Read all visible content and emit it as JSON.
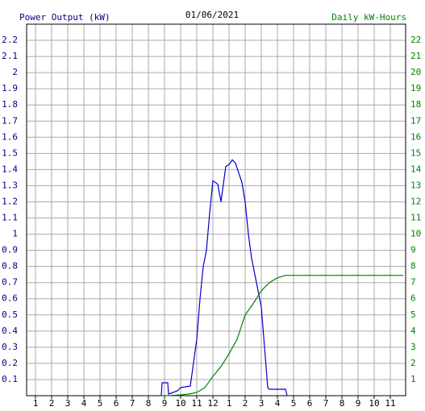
{
  "chart_data": {
    "type": "line",
    "title": "01/06/2021",
    "y_label": "Power Output (kW)",
    "y2_label": "Daily kW-Hours",
    "xlim": [
      0.45,
      23.95
    ],
    "xticks": [
      {
        "value": 1,
        "label": "1"
      },
      {
        "value": 2,
        "label": "2"
      },
      {
        "value": 3,
        "label": "3"
      },
      {
        "value": 4,
        "label": "4"
      },
      {
        "value": 5,
        "label": "5"
      },
      {
        "value": 6,
        "label": "6"
      },
      {
        "value": 7,
        "label": "7"
      },
      {
        "value": 8,
        "label": "8"
      },
      {
        "value": 9,
        "label": "9"
      },
      {
        "value": 10,
        "label": "10"
      },
      {
        "value": 11,
        "label": "11"
      },
      {
        "value": 12,
        "label": "12"
      },
      {
        "value": 13,
        "label": "1"
      },
      {
        "value": 14,
        "label": "2"
      },
      {
        "value": 15,
        "label": "3"
      },
      {
        "value": 16,
        "label": "4"
      },
      {
        "value": 17,
        "label": "5"
      },
      {
        "value": 18,
        "label": "6"
      },
      {
        "value": 19,
        "label": "7"
      },
      {
        "value": 20,
        "label": "8"
      },
      {
        "value": 21,
        "label": "9"
      },
      {
        "value": 22,
        "label": "10"
      },
      {
        "value": 23,
        "label": "11"
      }
    ],
    "ylim": [
      0,
      2.3
    ],
    "yticks": [
      0.1,
      0.2,
      0.3,
      0.4,
      0.5,
      0.6,
      0.7,
      0.8,
      0.9,
      1.0,
      1.1,
      1.2,
      1.3,
      1.4,
      1.5,
      1.6,
      1.7,
      1.8,
      1.9,
      2.0,
      2.1,
      2.2
    ],
    "y2lim": [
      0,
      23
    ],
    "y2ticks": [
      1,
      2,
      3,
      4,
      5,
      6,
      7,
      8,
      9,
      10,
      11,
      12,
      13,
      14,
      15,
      16,
      17,
      18,
      19,
      20,
      21,
      22
    ],
    "grid": true,
    "y_color": "#000080",
    "y2_color": "#008000",
    "series": [
      {
        "color": "#0000cc",
        "x": [
          8.8,
          8.85,
          9.2,
          9.25,
          9.8,
          10.0,
          10.6,
          11.0,
          11.2,
          11.4,
          11.6,
          11.8,
          12.0,
          12.3,
          12.5,
          12.8,
          13.0,
          13.2,
          13.4,
          13.6,
          13.8,
          14.0,
          14.2,
          14.4,
          14.6,
          14.8,
          15.0,
          15.2,
          15.4,
          15.5,
          16.0,
          16.5,
          16.6
        ],
        "values": [
          0.0,
          0.08,
          0.08,
          0.01,
          0.03,
          0.05,
          0.06,
          0.35,
          0.6,
          0.8,
          0.9,
          1.13,
          1.33,
          1.31,
          1.2,
          1.42,
          1.43,
          1.46,
          1.44,
          1.38,
          1.32,
          1.2,
          1.0,
          0.85,
          0.75,
          0.65,
          0.55,
          0.3,
          0.05,
          0.04,
          0.04,
          0.04,
          0.0
        ]
      },
      {
        "color": "#008000",
        "axis": "y2",
        "x": [
          8.8,
          9.2,
          10.0,
          10.5,
          11.0,
          11.5,
          12.0,
          12.5,
          13.0,
          13.5,
          14.0,
          14.5,
          15.0,
          15.5,
          16.0,
          16.5,
          23.8
        ],
        "values": [
          0,
          0,
          0.05,
          0.1,
          0.2,
          0.5,
          1.2,
          1.8,
          2.6,
          3.5,
          5.0,
          5.7,
          6.5,
          7.0,
          7.3,
          7.45,
          7.45
        ]
      }
    ]
  }
}
